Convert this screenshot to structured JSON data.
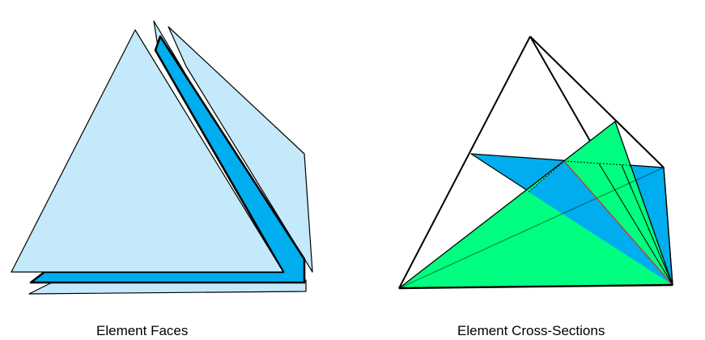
{
  "captions": {
    "left": "Element Faces",
    "right": "Element Cross-Sections"
  },
  "colors": {
    "face_light": "#c4e9fb",
    "face_dark": "#00aeef",
    "section_green": "#00ff80",
    "section_blue": "#00aeef",
    "edge": "#000000",
    "highlight_edge": "#d03020"
  }
}
